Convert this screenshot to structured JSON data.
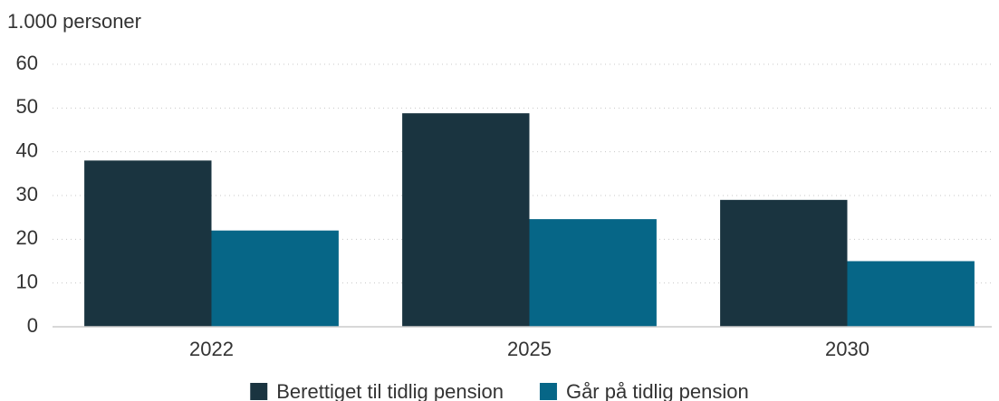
{
  "chart_data": {
    "type": "bar",
    "y_label": "1.000 personer",
    "categories": [
      "2022",
      "2025",
      "2030"
    ],
    "series": [
      {
        "name": "Berettiget til tidlig pension",
        "color": "#1a3440",
        "values": [
          38,
          48.8,
          29
        ]
      },
      {
        "name": "Går på tidlig pension",
        "color": "#066687",
        "values": [
          22,
          24.6,
          15
        ]
      }
    ],
    "ylim": [
      0,
      60
    ],
    "yticks": [
      0,
      10,
      20,
      30,
      40,
      50,
      60
    ],
    "grid": true,
    "legend": "bottom"
  }
}
